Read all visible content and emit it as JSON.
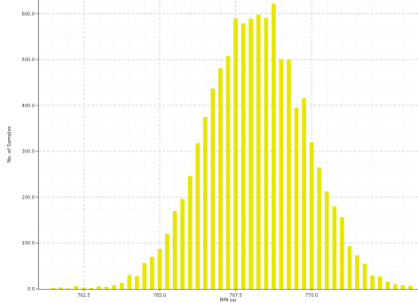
{
  "chart_data": {
    "type": "bar",
    "xlabel": "BIN μμ",
    "ylabel": "No. of Samples",
    "xlim": [
      761.0,
      773.5
    ],
    "ylim": [
      0,
      630
    ],
    "grid": true,
    "bar_color": "#e6e600",
    "x_ticks": [
      {
        "value": 762.5,
        "label": "762.5"
      },
      {
        "value": 765.0,
        "label": "765.0"
      },
      {
        "value": 767.5,
        "label": "767.5"
      },
      {
        "value": 770.0,
        "label": "770.0"
      }
    ],
    "y_ticks": [
      {
        "value": 0,
        "label": "0.0"
      },
      {
        "value": 100,
        "label": "100.0"
      },
      {
        "value": 200,
        "label": "200.0"
      },
      {
        "value": 300,
        "label": "300.0"
      },
      {
        "value": 400,
        "label": "400.0"
      },
      {
        "value": 500,
        "label": "500.0"
      },
      {
        "value": 600,
        "label": "600.0"
      }
    ],
    "bin_width": 0.25,
    "x": [
      761.5,
      761.75,
      762.0,
      762.25,
      762.5,
      762.75,
      763.0,
      763.25,
      763.5,
      763.75,
      764.0,
      764.25,
      764.5,
      764.75,
      765.0,
      765.25,
      765.5,
      765.75,
      766.0,
      766.25,
      766.5,
      766.75,
      767.0,
      767.25,
      767.5,
      767.75,
      768.0,
      768.25,
      768.5,
      768.75,
      769.0,
      769.25,
      769.5,
      769.75,
      770.0,
      770.25,
      770.5,
      770.75,
      771.0,
      771.25,
      771.5,
      771.75,
      772.0,
      772.25,
      772.5,
      772.75,
      773.0,
      773.25
    ],
    "values": [
      2,
      3,
      1,
      6,
      3,
      2,
      5,
      4,
      8,
      13,
      30,
      28,
      56,
      70,
      87,
      120,
      170,
      196,
      246,
      318,
      375,
      437,
      481,
      508,
      590,
      579,
      589,
      598,
      591,
      622,
      501,
      501,
      395,
      416,
      320,
      265,
      213,
      180,
      156,
      93,
      73,
      55,
      29,
      27,
      16,
      10,
      8,
      7
    ]
  }
}
